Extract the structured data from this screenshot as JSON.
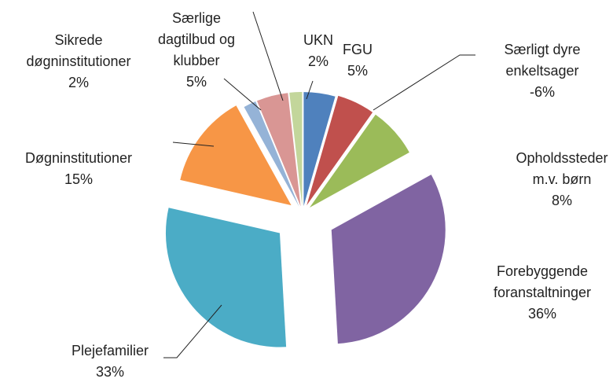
{
  "chart_data": {
    "type": "pie",
    "categories": [
      "FGU",
      "Særligt dyre enkeltsager",
      "Opholdssteder m.v. børn",
      "Forebyggende foranstaltninger",
      "Plejefamilier",
      "Døgninstitutioner",
      "Sikrede døgninstitutioner",
      "Særlige dagtilbud og klubber",
      "UKN"
    ],
    "values": [
      5,
      -6,
      8,
      36,
      33,
      15,
      2,
      5,
      2
    ],
    "value_labels": [
      "5%",
      "-6%",
      "8%",
      "36%",
      "33%",
      "15%",
      "2%",
      "5%",
      "2%"
    ],
    "colors": [
      "#4f81bd",
      "#c0504d",
      "#9bbb59",
      "#8064a2",
      "#4bacc6",
      "#f79646",
      "#95b3d7",
      "#d99694",
      "#c3d69b"
    ]
  }
}
